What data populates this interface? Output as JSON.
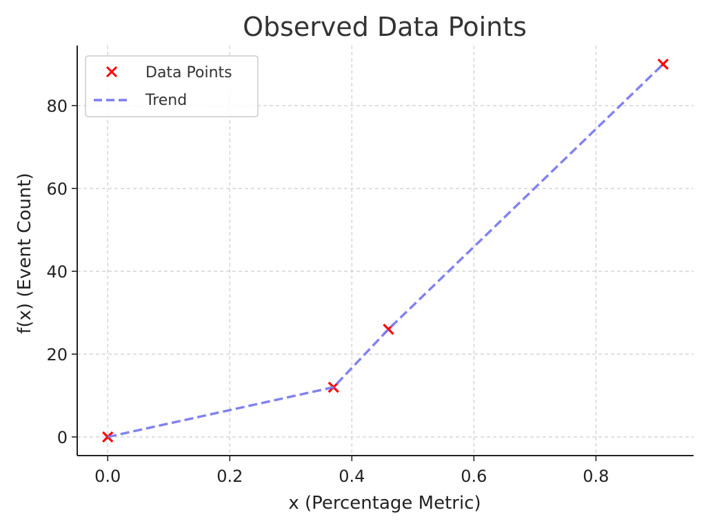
{
  "chart_data": {
    "type": "line",
    "title": "Observed Data Points",
    "xlabel": "x (Percentage Metric)",
    "ylabel": "f(x) (Event Count)",
    "xlim": [
      -0.05,
      0.96
    ],
    "ylim": [
      -4.5,
      94.5
    ],
    "xticks": [
      0.0,
      0.2,
      0.4,
      0.6,
      0.8
    ],
    "xtick_labels": [
      "0.0",
      "0.2",
      "0.4",
      "0.6",
      "0.8"
    ],
    "yticks": [
      0,
      20,
      40,
      60,
      80
    ],
    "ytick_labels": [
      "0",
      "20",
      "40",
      "60",
      "80"
    ],
    "grid": true,
    "legend_position": "top-left",
    "series": [
      {
        "name": "Data Points",
        "kind": "scatter",
        "marker": "x",
        "color": "#ff0000",
        "x": [
          0.0,
          0.37,
          0.46,
          0.91
        ],
        "y": [
          0,
          12,
          26,
          90
        ]
      },
      {
        "name": "Trend",
        "kind": "line",
        "style": "dashed",
        "color": "#7b7bf0",
        "x": [
          0.0,
          0.37,
          0.46,
          0.91
        ],
        "y": [
          0,
          12,
          26,
          90
        ]
      }
    ]
  }
}
